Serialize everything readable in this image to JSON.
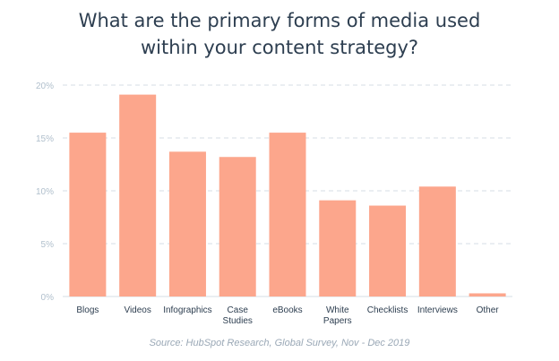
{
  "title_line1": "What are the primary forms of media used",
  "title_line2": "within your content strategy?",
  "source": "Source: HubSpot Research, Global Survey, Nov - Dec 2019",
  "colors": {
    "bar": "#fca68c",
    "grid": "#d5dde5",
    "tick": "#b0bfcc",
    "label": "#2d3e50"
  },
  "chart_data": {
    "type": "bar",
    "title": "What are the primary forms of media used within your content strategy?",
    "categories": [
      [
        "Blogs"
      ],
      [
        "Videos"
      ],
      [
        "Infographics"
      ],
      [
        "Case",
        "Studies"
      ],
      [
        "eBooks"
      ],
      [
        "White",
        "Papers"
      ],
      [
        "Checklists"
      ],
      [
        "Interviews"
      ],
      [
        "Other"
      ]
    ],
    "values": [
      15.5,
      19.1,
      13.7,
      13.2,
      15.5,
      9.1,
      8.6,
      10.4,
      0.3
    ],
    "yticks": [
      "0%",
      "5%",
      "10%",
      "15%",
      "20%"
    ],
    "ylim": [
      0,
      20
    ],
    "grid": true
  }
}
